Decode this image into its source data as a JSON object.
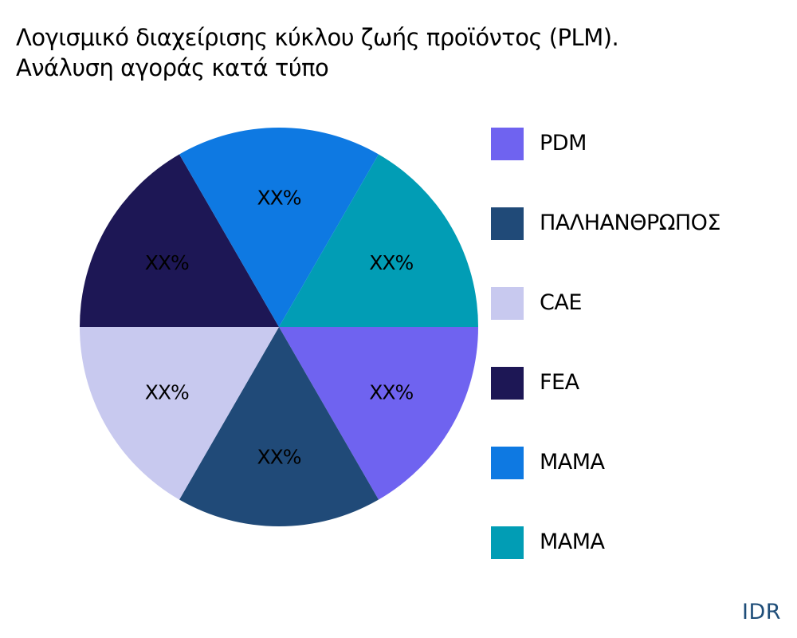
{
  "title": {
    "line1": "Λογισμικό διαχείρισης κύκλου ζωής προϊόντος (PLM).",
    "line2": "Ανάλυση αγοράς κατά τύπο"
  },
  "chart_data": {
    "type": "pie",
    "title": "Λογισμικό διαχείρισης κύκλου ζωής προϊόντος (PLM). Ανάλυση αγοράς κατά τύπο",
    "categories": [
      "PDM",
      "ΠΑΛΗΑΝΘΡΩΠΟΣ",
      "CAE",
      "FEA",
      "MAMA",
      "MAMA"
    ],
    "values": [
      16.67,
      16.67,
      16.67,
      16.67,
      16.67,
      16.67
    ],
    "data_labels": [
      "XX%",
      "XX%",
      "XX%",
      "XX%",
      "XX%",
      "XX%"
    ],
    "colors": [
      "#6f63f0",
      "#204a78",
      "#c8c9ef",
      "#1d1755",
      "#0e79e2",
      "#019db5"
    ],
    "legend_position": "right",
    "start_angle_deg": 0,
    "direction": "clockwise"
  },
  "legend": {
    "items": [
      {
        "label": "PDM",
        "color": "#6f63f0"
      },
      {
        "label": "ΠΑΛΗΑΝΘΡΩΠΟΣ",
        "color": "#204a78"
      },
      {
        "label": "CAE",
        "color": "#c8c9ef"
      },
      {
        "label": "FEA",
        "color": "#1d1755"
      },
      {
        "label": "MAMA",
        "color": "#0e79e2"
      },
      {
        "label": "MAMA",
        "color": "#019db5"
      }
    ]
  },
  "brand": "IDR"
}
